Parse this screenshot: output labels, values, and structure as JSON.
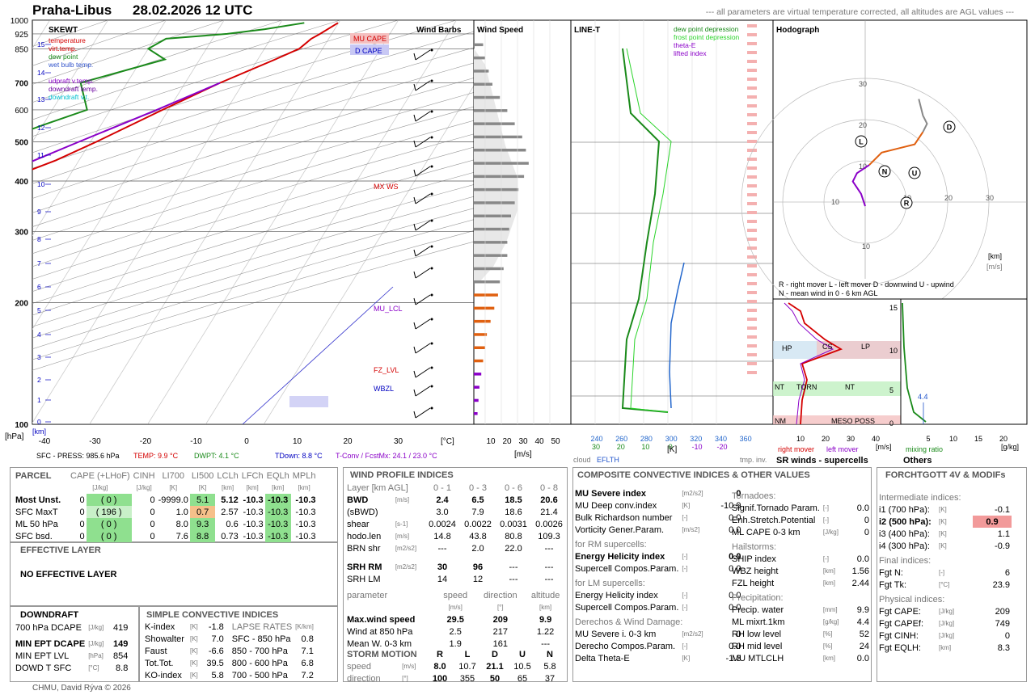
{
  "header": {
    "station": "Praha-Libus",
    "time": "28.02.2026 12 UTC",
    "note": "--- all parameters are virtual temperature corrected, all altitudes are AGL values ---"
  },
  "skewt": {
    "title": "SKEWT",
    "legend": [
      "temperature",
      "virt.temp.",
      "dew point",
      "wet bulb temp.",
      "udpraft v.temp.",
      "downdraft temp.",
      "downdraft v.t."
    ],
    "legend_colors": [
      "#d40000",
      "#d40000",
      "#1a8a1a",
      "#3355cc",
      "#8a00c8",
      "#6a00a0",
      "#00c0d0"
    ],
    "pressure_ticks": [
      "100",
      "200",
      "300",
      "400",
      "500",
      "600",
      "700",
      "850",
      "925",
      "1000"
    ],
    "km_ticks": [
      "15",
      "14",
      "13",
      "12",
      "11",
      "10",
      "9",
      "8",
      "7",
      "6",
      "5",
      "4",
      "3",
      "2",
      "1",
      "0"
    ],
    "temp_ticks": [
      "-40",
      "-30",
      "-20",
      "-10",
      "0",
      "10",
      "20",
      "30"
    ],
    "unit_c": "[°C]",
    "unit_km": "[km]",
    "unit_hpa": "[hPa]",
    "boxes": [
      "MU CAPE",
      "D CAPE"
    ],
    "levels": [
      "MX WS",
      "MU_LCL",
      "FZ_LVL",
      "WBZL"
    ],
    "bottom": {
      "sfc": "SFC - PRESS: 985.6 hPa",
      "temp": "TEMP: 9.9 °C",
      "dwpt": "DWPT: 4.1 °C",
      "tdown": "TDown: 8.8 °C",
      "tconv": "T-Conv / FcstMx: 24.1 / 23.0 °C"
    }
  },
  "windbarbs": {
    "title": "Wind Barbs"
  },
  "windspeed": {
    "title": "Wind Speed",
    "ticks": [
      "10",
      "20",
      "30",
      "40",
      "50"
    ],
    "unit": "[m/s]"
  },
  "linet": {
    "title": "LINE-T",
    "legend": [
      "dew point depression",
      "frost point depression",
      "theta-E",
      "lifted index"
    ],
    "legend_colors": [
      "#1a8a1a",
      "#2bd42b",
      "#8a00c8",
      "#8a00c8"
    ],
    "k_ticks": [
      "240",
      "260",
      "280",
      "300",
      "320",
      "340",
      "360"
    ],
    "sub_ticks_green": [
      "30",
      "20",
      "10",
      "0"
    ],
    "sub_ticks_purple": [
      "-10",
      "-20"
    ],
    "unit": "[K]",
    "cloud": "cloud",
    "eflth": "EFLTH",
    "tmpinv": "tmp. inv."
  },
  "hodograph": {
    "title": "Hodograph",
    "rings": [
      "10",
      "20",
      "30"
    ],
    "points": [
      "L",
      "N",
      "U",
      "R",
      "D"
    ],
    "unit_km": "[km]",
    "unit_ms": "[m/s]",
    "legend1": "R - right mover       L - left mover       D - downwind    U - upwind",
    "legend2": "N - mean wind in 0 - 6 km AGL"
  },
  "srwinds": {
    "title": "SR winds - supercells",
    "labels": [
      "HP",
      "CS",
      "LP",
      "NT",
      "TORN",
      "NT",
      "NM",
      "MESO POSS"
    ],
    "km_ticks": [
      "15",
      "10",
      "5",
      "0"
    ],
    "x_ticks": [
      "10",
      "20",
      "30",
      "40"
    ],
    "unit": "[m/s]",
    "right_mover": "right mover",
    "left_mover": "left mover"
  },
  "others": {
    "title": "Others",
    "x_ticks": [
      "5",
      "10",
      "15",
      "20"
    ],
    "mixing": "mixing ratio",
    "unit": "[g/kg]",
    "value_label": "4.4"
  },
  "parcel": {
    "title": "PARCEL",
    "cols": [
      "CAPE (+LHoF)",
      "CINH",
      "LI700",
      "LI500",
      "LCLh",
      "LFCh",
      "EQLh",
      "MPLh"
    ],
    "units": [
      "[J/kg]",
      "[J/kg]",
      "[K]",
      "[K]",
      "[km]",
      "[km]",
      "[km]",
      "[km]"
    ],
    "rows": [
      {
        "name": "Most Unst.",
        "cape": "0",
        "lhof": "( 0 )",
        "cinh": "0",
        "li700": "-9999.0",
        "li500": "5.1",
        "lcl": "5.12",
        "lfc": "-10.3",
        "eql": "-10.3",
        "mpl": "-10.3"
      },
      {
        "name": "SFC MaxT",
        "cape": "0",
        "lhof": "( 196 )",
        "cinh": "0",
        "li700": "1.0",
        "li500": "0.7",
        "lcl": "2.57",
        "lfc": "-10.3",
        "eql": "-10.3",
        "mpl": "-10.3"
      },
      {
        "name": "ML 50 hPa",
        "cape": "0",
        "lhof": "( 0 )",
        "cinh": "0",
        "li700": "8.0",
        "li500": "9.3",
        "lcl": "0.6",
        "lfc": "-10.3",
        "eql": "-10.3",
        "mpl": "-10.3"
      },
      {
        "name": "SFC bsd.",
        "cape": "0",
        "lhof": "( 0 )",
        "cinh": "0",
        "li700": "7.6",
        "li500": "8.8",
        "lcl": "0.73",
        "lfc": "-10.3",
        "eql": "-10.3",
        "mpl": "-10.3"
      }
    ]
  },
  "effective": {
    "title": "EFFECTIVE LAYER",
    "text": "NO EFFECTIVE LAYER"
  },
  "downdraft": {
    "title": "DOWNDRAFT",
    "rows": [
      {
        "label": "700 hPa DCAPE",
        "unit": "[J/kg]",
        "value": "419"
      },
      {
        "label": "MIN EPT DCAPE",
        "unit": "[J/kg]",
        "value": "149"
      },
      {
        "label": "MIN EPT LVL",
        "unit": "[hPa]",
        "value": "854"
      },
      {
        "label": "DOWD T SFC",
        "unit": "[°C]",
        "value": "8.8"
      }
    ]
  },
  "simple": {
    "title": "SIMPLE CONVECTIVE INDICES",
    "lapse_title": "LAPSE RATES",
    "lapse_unit": "[K/km]",
    "rows": [
      {
        "label": "K-index",
        "unit": "[K]",
        "value": "-1.8",
        "lr_label": "SFC - 850 hPa",
        "lr": "0.8"
      },
      {
        "label": "Showalter",
        "unit": "[K]",
        "value": "7.0",
        "lr_label": "850 - 700 hPa",
        "lr": "7.1"
      },
      {
        "label": "Faust",
        "unit": "[K]",
        "value": "-6.6",
        "lr_label": "800 - 600 hPa",
        "lr": "6.8"
      },
      {
        "label": "Tot.Tot.",
        "unit": "[K]",
        "value": "39.5",
        "lr_label": "700 - 500 hPa",
        "lr": "7.2"
      },
      {
        "label": "KO-index",
        "unit": "[K]",
        "value": "5.8",
        "lr_label": "",
        "lr": ""
      }
    ],
    "lr_first": {
      "label": "SFC - 850 hPa",
      "value": "0.8"
    }
  },
  "wind_profile": {
    "title": "WIND PROFILE INDICES",
    "layer_hdr": "Layer [km AGL]",
    "cols": [
      "0 - 1",
      "0 - 3",
      "0 - 6",
      "0 - 8"
    ],
    "rows": [
      {
        "label": "BWD",
        "unit": "[m/s]",
        "vals": [
          "2.4",
          "6.5",
          "18.5",
          "20.6"
        ],
        "bold": true
      },
      {
        "label": "(sBWD)",
        "unit": "",
        "vals": [
          "3.0",
          "7.9",
          "18.6",
          "21.4"
        ]
      },
      {
        "label": "shear",
        "unit": "[s-1]",
        "vals": [
          "0.0024",
          "0.0022",
          "0.0031",
          "0.0026"
        ]
      },
      {
        "label": "hodo.len",
        "unit": "[m/s]",
        "vals": [
          "14.8",
          "43.8",
          "80.8",
          "109.3"
        ]
      },
      {
        "label": "BRN shr",
        "unit": "[m2/s2]",
        "vals": [
          "---",
          "2.0",
          "22.0",
          "---"
        ]
      },
      {
        "label": "SRH RM",
        "unit": "[m2/s2]",
        "vals": [
          "30",
          "96",
          "---",
          "---"
        ],
        "bold": true
      },
      {
        "label": "SRH LM",
        "unit": "",
        "vals": [
          "14",
          "12",
          "---",
          "---"
        ]
      }
    ],
    "param_hdr": [
      "parameter",
      "speed",
      "direction",
      "altitude"
    ],
    "param_units": [
      "[m/s]",
      "[°]",
      "[km]"
    ],
    "params": [
      {
        "label": "Max.wind speed",
        "vals": [
          "29.5",
          "209",
          "9.9"
        ],
        "bold": true
      },
      {
        "label": "Wind at 850 hPa",
        "vals": [
          "2.5",
          "217",
          "1.22"
        ]
      },
      {
        "label": "Mean W. 0-3 km",
        "vals": [
          "1.9",
          "161",
          "---"
        ]
      }
    ],
    "storm_title": "STORM MOTION",
    "storm_cols": [
      "R",
      "L",
      "D",
      "U",
      "N"
    ],
    "storm_rows": [
      {
        "label": "speed",
        "unit": "[m/s]",
        "vals": [
          "8.0",
          "10.7",
          "21.1",
          "10.5",
          "5.8"
        ]
      },
      {
        "label": "direction",
        "unit": "[°]",
        "vals": [
          "100",
          "355",
          "50",
          "65",
          "37"
        ]
      }
    ]
  },
  "composite": {
    "title": "COMPOSITE CONVECTIVE INDICES & OTHER VALUES",
    "left": [
      {
        "label": "MU Severe index",
        "unit": "[m2/s2]",
        "value": "0",
        "bold": true
      },
      {
        "label": "MU Deep conv.index",
        "unit": "[K]",
        "value": "-10.9"
      },
      {
        "label": "Bulk Richardson number",
        "unit": "[-]",
        "value": "0.0"
      },
      {
        "label": "Vorticity Gener.Param.",
        "unit": "[m/s2]",
        "value": "0.0"
      },
      {
        "label": "for RM supercells:",
        "section": true
      },
      {
        "label": "Energy Helicity index",
        "unit": "[-]",
        "value": "0.0",
        "bold": true
      },
      {
        "label": "Supercell Compos.Param.",
        "unit": "[-]",
        "value": "0.0"
      },
      {
        "label": "for LM supercells:",
        "section": true
      },
      {
        "label": "Energy Helicity index",
        "unit": "[-]",
        "value": "0.0"
      },
      {
        "label": "Supercell Compos.Param.",
        "unit": "[-]",
        "value": "0.0"
      },
      {
        "label": "Derechos & Wind Damage:",
        "section": true
      },
      {
        "label": "MU Severe i. 0-3 km",
        "unit": "[m2/s2]",
        "value": "0"
      },
      {
        "label": "Derecho Compos.Param.",
        "unit": "[-]",
        "value": "0.0"
      },
      {
        "label": "Delta Theta-E",
        "unit": "[K]",
        "value": "-1.3"
      }
    ],
    "right": [
      {
        "label": "Tornadoes:",
        "section": true
      },
      {
        "label": "Signif.Tornado Param.",
        "unit": "[-]",
        "value": "0.0"
      },
      {
        "label": "Enh.Stretch.Potential",
        "unit": "[-]",
        "value": "0"
      },
      {
        "label": "ML CAPE 0-3 km",
        "unit": "[J/kg]",
        "value": "0"
      },
      {
        "label": "Hailstorms:",
        "section": true
      },
      {
        "label": "SHIP index",
        "unit": "[-]",
        "value": "0.0"
      },
      {
        "label": "WBZ height",
        "unit": "[km]",
        "value": "1.56"
      },
      {
        "label": "FZL height",
        "unit": "[km]",
        "value": "2.44"
      },
      {
        "label": "Precipitation:",
        "section": true
      },
      {
        "label": "Precip. water",
        "unit": "[mm]",
        "value": "9.9"
      },
      {
        "label": "ML mixrt.1km",
        "unit": "[g/kg]",
        "value": "4.4"
      },
      {
        "label": "RH low level",
        "unit": "[%]",
        "value": "52"
      },
      {
        "label": "RH mid level",
        "unit": "[%]",
        "value": "24"
      },
      {
        "label": "MU MTLCLH",
        "unit": "[km]",
        "value": "0.0"
      }
    ]
  },
  "forchtgott": {
    "title": "FORCHTGOTT 4V & MODIFs",
    "rows": [
      {
        "label": "Intermediate indices:",
        "section": true
      },
      {
        "label": "i1 (700 hPa):",
        "unit": "[K]",
        "value": "-0.1"
      },
      {
        "label": "i2 (500 hPa):",
        "unit": "[K]",
        "value": "0.9",
        "bold": true,
        "hl": true
      },
      {
        "label": "i3 (400 hPa):",
        "unit": "[K]",
        "value": "1.1"
      },
      {
        "label": "i4 (300 hPa):",
        "unit": "[K]",
        "value": "-0.9"
      },
      {
        "label": "Final indices:",
        "section": true
      },
      {
        "label": "Fgt N:",
        "unit": "[-]",
        "value": "6"
      },
      {
        "label": "Fgt Tk:",
        "unit": "[°C]",
        "value": "23.9"
      },
      {
        "label": "Physical indices:",
        "section": true
      },
      {
        "label": "Fgt CAPE:",
        "unit": "[J/kg]",
        "value": "209"
      },
      {
        "label": "Fgt CAPEf:",
        "unit": "[J/kg]",
        "value": "749"
      },
      {
        "label": "Fgt CINH:",
        "unit": "[J/kg]",
        "value": "0"
      },
      {
        "label": "Fgt EQLH:",
        "unit": "[km]",
        "value": "8.3"
      }
    ]
  },
  "footer": "CHMU, David Rýva © 2026",
  "chart_data": [
    {
      "type": "line",
      "title": "SKEWT",
      "xlabel": "[°C]",
      "ylabel": "[hPa]",
      "ylim": [
        1000,
        100
      ],
      "xlim": [
        -40,
        35
      ],
      "series": [
        {
          "name": "temperature",
          "p": [
            985,
            925,
            900,
            850,
            800,
            700,
            600,
            500,
            450,
            400,
            350,
            300,
            270,
            250,
            230,
            200,
            180,
            150,
            130,
            100
          ],
          "t": [
            9.9,
            8,
            7,
            6,
            3,
            -4,
            -11,
            -19,
            -24,
            -31,
            -38,
            -44,
            -48,
            -50,
            -47,
            -40,
            -35,
            -28,
            -22,
            -12
          ]
        },
        {
          "name": "dew point",
          "p": [
            985,
            950,
            925,
            900,
            850,
            800,
            700,
            600,
            550,
            500,
            450,
            400,
            350,
            300,
            250,
            200,
            150,
            100
          ],
          "t": [
            4.1,
            -2,
            -8,
            -18,
            -20,
            -16,
            -28,
            -24,
            -30,
            -36,
            -42,
            -40,
            -45,
            -50,
            -54,
            -58,
            -55,
            -48
          ]
        },
        {
          "name": "udpraft v.temp.",
          "p": [
            700,
            600,
            500,
            400,
            300,
            250,
            200,
            150,
            100
          ],
          "t": [
            -4,
            -12,
            -22,
            -34,
            -50,
            -58,
            -66,
            -76,
            -88
          ]
        }
      ]
    },
    {
      "type": "bar",
      "title": "Wind Speed",
      "xlabel": "[m/s]",
      "categories_km": [
        0.5,
        1,
        1.5,
        2,
        2.5,
        3,
        3.5,
        4,
        4.5,
        5,
        5.5,
        6,
        6.5,
        7,
        7.5,
        8,
        8.5,
        9,
        9.5,
        10,
        10.5,
        11,
        11.5,
        12,
        12.5,
        13,
        13.5,
        14,
        14.5
      ],
      "values": [
        2,
        2.5,
        3,
        4,
        5,
        6,
        7,
        9,
        11,
        13,
        14,
        16,
        18,
        18,
        19,
        20,
        22,
        24,
        27,
        29.5,
        28,
        26,
        22,
        18,
        14,
        10,
        8,
        6,
        5
      ]
    },
    {
      "type": "line",
      "title": "Hodograph",
      "series": [
        {
          "name": "hodograph",
          "u": [
            0,
            -1,
            -3,
            -2,
            1,
            4,
            8,
            12,
            14,
            15,
            14,
            13
          ],
          "v": [
            -1,
            2,
            5,
            7,
            9,
            12,
            13,
            14,
            17,
            19,
            21,
            25
          ]
        }
      ],
      "storm_motion": {
        "R": [
          8.0,
          100
        ],
        "L": [
          10.7,
          355
        ],
        "D": [
          21.1,
          50
        ],
        "U": [
          10.5,
          65
        ],
        "N": [
          5.8,
          37
        ]
      }
    }
  ]
}
